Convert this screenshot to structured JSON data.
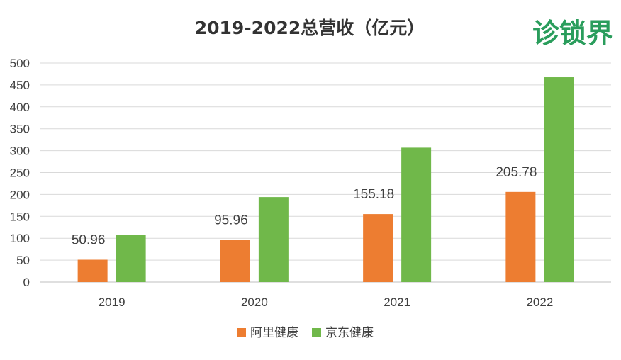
{
  "logo": {
    "text": "诊锁界"
  },
  "chart_data": {
    "type": "bar",
    "title": "2019-2022总营收（亿元）",
    "xlabel": "",
    "ylabel": "",
    "categories": [
      "2019",
      "2020",
      "2021",
      "2022"
    ],
    "ylim": [
      0,
      500
    ],
    "yticks": [
      0,
      50,
      100,
      150,
      200,
      250,
      300,
      350,
      400,
      450,
      500
    ],
    "grid": true,
    "legend": "bottom",
    "series": [
      {
        "name": "阿里健康",
        "color": "#ed7d31",
        "values": [
          50.96,
          95.96,
          155.18,
          205.78
        ],
        "labels": [
          "50.96",
          "95.96",
          "155.18",
          "205.78"
        ]
      },
      {
        "name": "京东健康",
        "color": "#70b84a",
        "values": [
          108.4,
          194.0,
          306.8,
          467.6
        ]
      }
    ]
  }
}
